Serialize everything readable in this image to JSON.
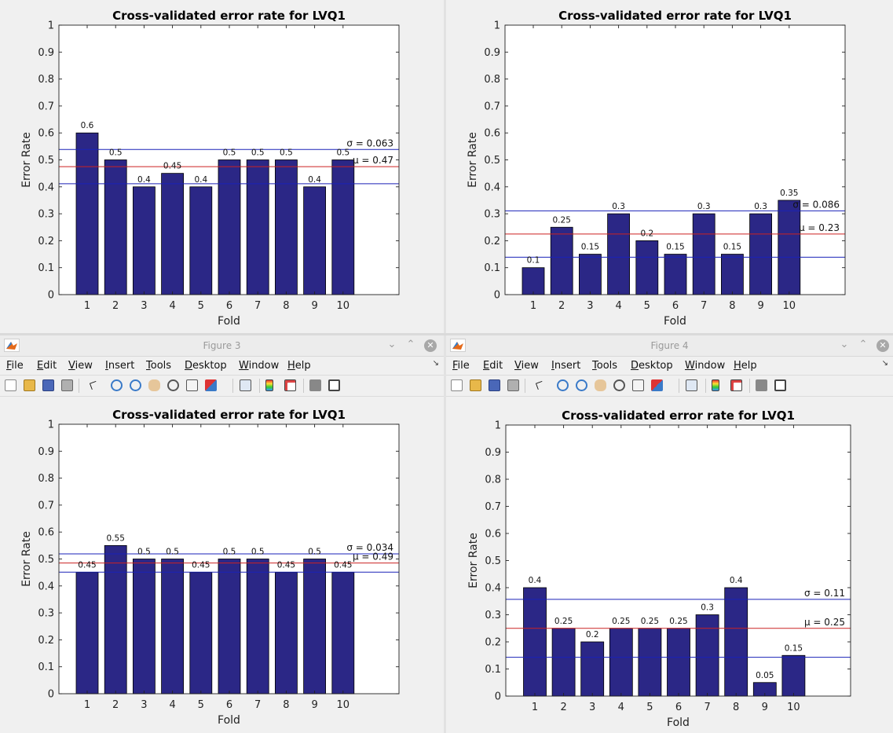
{
  "colors": {
    "bar": "#2b2786",
    "mean_line": "#cc2222",
    "std_line": "#1a22b8",
    "axes_bg": "#ffffff",
    "figure_bg": "#f0f0f0"
  },
  "menus": [
    {
      "pre": "",
      "key": "F",
      "post": "ile"
    },
    {
      "pre": "",
      "key": "E",
      "post": "dit"
    },
    {
      "pre": "",
      "key": "V",
      "post": "iew"
    },
    {
      "pre": "",
      "key": "I",
      "post": "nsert"
    },
    {
      "pre": "",
      "key": "T",
      "post": "ools"
    },
    {
      "pre": "",
      "key": "D",
      "post": "esktop"
    },
    {
      "pre": "",
      "key": "W",
      "post": "indow"
    },
    {
      "pre": "",
      "key": "H",
      "post": "elp"
    }
  ],
  "toolbar_icons": [
    "new-figure-icon",
    "open-file-icon",
    "save-icon",
    "print-icon",
    "pointer-icon",
    "zoom-in-icon",
    "zoom-out-icon",
    "pan-icon",
    "rotate-3d-icon",
    "data-cursor-icon",
    "brush-icon",
    "link-plot-icon",
    "colorbar-icon",
    "legend-icon",
    "hide-plot-tools-icon",
    "show-plot-tools-icon"
  ],
  "figures": [
    {
      "id": "figure-1",
      "window_title": ""
    },
    {
      "id": "figure-2",
      "window_title": ""
    },
    {
      "id": "figure-3",
      "window_title": "Figure 3"
    },
    {
      "id": "figure-4",
      "window_title": "Figure 4"
    }
  ],
  "chart_data": [
    {
      "type": "bar",
      "title": "Cross-validated error rate for LVQ1",
      "xlabel": "Fold",
      "ylabel": "Error Rate",
      "categories": [
        "1",
        "2",
        "3",
        "4",
        "5",
        "6",
        "7",
        "8",
        "9",
        "10"
      ],
      "values": [
        0.6,
        0.5,
        0.4,
        0.45,
        0.4,
        0.5,
        0.5,
        0.5,
        0.4,
        0.5
      ],
      "value_labels": [
        "0.6",
        "0.5",
        "0.4",
        "0.45",
        "0.4",
        "0.5",
        "0.5",
        "0.5",
        "0.4",
        "0.5"
      ],
      "ylim": [
        0,
        1
      ],
      "yticks": [
        "0",
        "0.1",
        "0.2",
        "0.3",
        "0.4",
        "0.5",
        "0.6",
        "0.7",
        "0.8",
        "0.9",
        "1"
      ],
      "mean": 0.475,
      "std": 0.0635,
      "mean_label": "μ = 0.47",
      "std_label": "σ = 0.063",
      "grid": false
    },
    {
      "type": "bar",
      "title": "Cross-validated error rate for LVQ1",
      "xlabel": "Fold",
      "ylabel": "Error Rate",
      "categories": [
        "1",
        "2",
        "3",
        "4",
        "5",
        "6",
        "7",
        "8",
        "9",
        "10"
      ],
      "values": [
        0.1,
        0.25,
        0.15,
        0.3,
        0.2,
        0.15,
        0.3,
        0.15,
        0.3,
        0.35
      ],
      "value_labels": [
        "0.1",
        "0.25",
        "0.15",
        "0.3",
        "0.2",
        "0.15",
        "0.3",
        "0.15",
        "0.3",
        "0.35"
      ],
      "ylim": [
        0,
        1
      ],
      "yticks": [
        "0",
        "0.1",
        "0.2",
        "0.3",
        "0.4",
        "0.5",
        "0.6",
        "0.7",
        "0.8",
        "0.9",
        "1"
      ],
      "mean": 0.225,
      "std": 0.086,
      "mean_label": "μ = 0.23",
      "std_label": "σ = 0.086",
      "grid": false
    },
    {
      "type": "bar",
      "title": "Cross-validated error rate for LVQ1",
      "xlabel": "Fold",
      "ylabel": "Error Rate",
      "categories": [
        "1",
        "2",
        "3",
        "4",
        "5",
        "6",
        "7",
        "8",
        "9",
        "10"
      ],
      "values": [
        0.45,
        0.55,
        0.5,
        0.5,
        0.45,
        0.5,
        0.5,
        0.45,
        0.5,
        0.45
      ],
      "value_labels": [
        "0.45",
        "0.55",
        "0.5",
        "0.5",
        "0.45",
        "0.5",
        "0.5",
        "0.45",
        "0.5",
        "0.45"
      ],
      "ylim": [
        0,
        1
      ],
      "yticks": [
        "0",
        "0.1",
        "0.2",
        "0.3",
        "0.4",
        "0.5",
        "0.6",
        "0.7",
        "0.8",
        "0.9",
        "1"
      ],
      "mean": 0.485,
      "std": 0.034,
      "mean_label": "μ = 0.49",
      "std_label": "σ = 0.034",
      "grid": false
    },
    {
      "type": "bar",
      "title": "Cross-validated error rate for LVQ1",
      "xlabel": "Fold",
      "ylabel": "Error Rate",
      "categories": [
        "1",
        "2",
        "3",
        "4",
        "5",
        "6",
        "7",
        "8",
        "9",
        "10"
      ],
      "values": [
        0.4,
        0.25,
        0.2,
        0.25,
        0.25,
        0.25,
        0.3,
        0.4,
        0.05,
        0.15
      ],
      "value_labels": [
        "0.4",
        "0.25",
        "0.2",
        "0.25",
        "0.25",
        "0.25",
        "0.3",
        "0.4",
        "0.05",
        "0.15"
      ],
      "ylim": [
        0,
        1
      ],
      "yticks": [
        "0",
        "0.1",
        "0.2",
        "0.3",
        "0.4",
        "0.5",
        "0.6",
        "0.7",
        "0.8",
        "0.9",
        "1"
      ],
      "mean": 0.25,
      "std": 0.107,
      "mean_label": "μ = 0.25",
      "std_label": "σ = 0.11",
      "grid": false
    }
  ]
}
